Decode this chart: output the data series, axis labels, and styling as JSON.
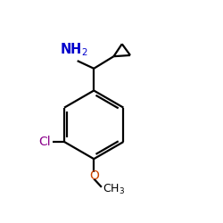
{
  "bg_color": "#ffffff",
  "bond_color": "#000000",
  "nh2_color": "#0000cc",
  "cl_color": "#8b008b",
  "o_color": "#cc4400",
  "bond_width": 1.6,
  "figsize": [
    2.5,
    2.5
  ],
  "dpi": 100
}
